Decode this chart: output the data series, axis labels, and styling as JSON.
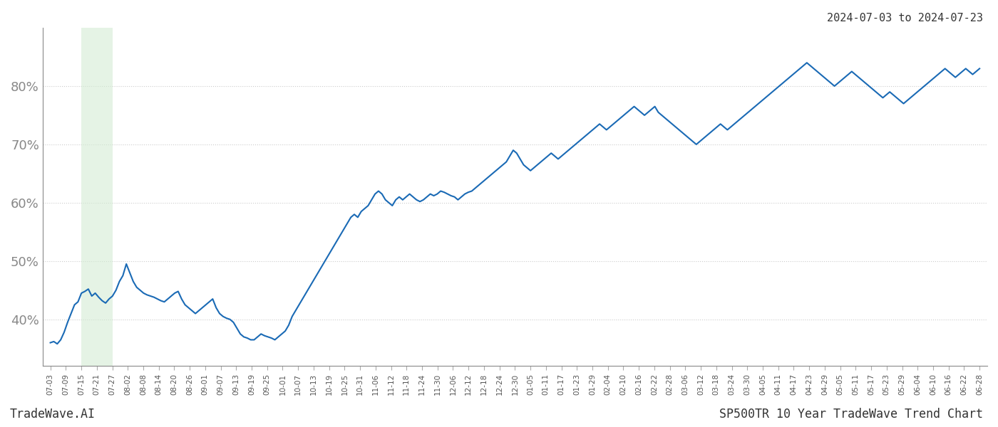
{
  "title_top_right": "2024-07-03 to 2024-07-23",
  "bottom_left": "TradeWave.AI",
  "bottom_right": "SP500TR 10 Year TradeWave Trend Chart",
  "line_color": "#1a6ab5",
  "line_width": 1.5,
  "shade_color": "#d4ecd4",
  "shade_alpha": 0.6,
  "shade_xstart": 2,
  "shade_xend": 4,
  "background_color": "#ffffff",
  "grid_color": "#cccccc",
  "grid_style": ":",
  "yticks": [
    40,
    50,
    60,
    70,
    80
  ],
  "ylim": [
    32,
    90
  ],
  "ylabel_color": "#888888",
  "x_labels": [
    "07-03",
    "07-09",
    "07-15",
    "07-21",
    "07-27",
    "08-02",
    "08-08",
    "08-14",
    "08-20",
    "08-26",
    "09-01",
    "09-07",
    "09-13",
    "09-19",
    "09-25",
    "10-01",
    "10-07",
    "10-13",
    "10-19",
    "10-25",
    "10-31",
    "11-06",
    "11-12",
    "11-18",
    "11-24",
    "11-30",
    "12-06",
    "12-12",
    "12-18",
    "12-24",
    "12-30",
    "01-05",
    "01-11",
    "01-17",
    "01-23",
    "01-29",
    "02-04",
    "02-10",
    "02-16",
    "02-22",
    "02-28",
    "03-06",
    "03-12",
    "03-18",
    "03-24",
    "03-30",
    "04-05",
    "04-11",
    "04-17",
    "04-23",
    "04-29",
    "05-05",
    "05-11",
    "05-17",
    "05-23",
    "05-29",
    "06-04",
    "06-10",
    "06-16",
    "06-22",
    "06-28"
  ],
  "y_values": [
    36.0,
    36.2,
    35.8,
    36.5,
    37.8,
    39.5,
    41.0,
    42.5,
    43.0,
    44.5,
    44.8,
    45.2,
    44.0,
    44.5,
    43.8,
    43.2,
    42.8,
    43.5,
    44.0,
    45.0,
    46.5,
    47.5,
    49.5,
    48.0,
    46.5,
    45.5,
    45.0,
    44.5,
    44.2,
    44.0,
    43.8,
    43.5,
    43.2,
    43.0,
    43.5,
    44.0,
    44.5,
    44.8,
    43.5,
    42.5,
    42.0,
    41.5,
    41.0,
    41.5,
    42.0,
    42.5,
    43.0,
    43.5,
    42.0,
    41.0,
    40.5,
    40.2,
    40.0,
    39.5,
    38.5,
    37.5,
    37.0,
    36.8,
    36.5,
    36.5,
    37.0,
    37.5,
    37.2,
    37.0,
    36.8,
    36.5,
    37.0,
    37.5,
    38.0,
    39.0,
    40.5,
    41.5,
    42.5,
    43.5,
    44.5,
    45.5,
    46.5,
    47.5,
    48.5,
    49.5,
    50.5,
    51.5,
    52.5,
    53.5,
    54.5,
    55.5,
    56.5,
    57.5,
    58.0,
    57.5,
    58.5,
    59.0,
    59.5,
    60.5,
    61.5,
    62.0,
    61.5,
    60.5,
    60.0,
    59.5,
    60.5,
    61.0,
    60.5,
    61.0,
    61.5,
    61.0,
    60.5,
    60.2,
    60.5,
    61.0,
    61.5,
    61.2,
    61.5,
    62.0,
    61.8,
    61.5,
    61.2,
    61.0,
    60.5,
    61.0,
    61.5,
    61.8,
    62.0,
    62.5,
    63.0,
    63.5,
    64.0,
    64.5,
    65.0,
    65.5,
    66.0,
    66.5,
    67.0,
    68.0,
    69.0,
    68.5,
    67.5,
    66.5,
    66.0,
    65.5,
    66.0,
    66.5,
    67.0,
    67.5,
    68.0,
    68.5,
    68.0,
    67.5,
    68.0,
    68.5,
    69.0,
    69.5,
    70.0,
    70.5,
    71.0,
    71.5,
    72.0,
    72.5,
    73.0,
    73.5,
    73.0,
    72.5,
    73.0,
    73.5,
    74.0,
    74.5,
    75.0,
    75.5,
    76.0,
    76.5,
    76.0,
    75.5,
    75.0,
    75.5,
    76.0,
    76.5,
    75.5,
    75.0,
    74.5,
    74.0,
    73.5,
    73.0,
    72.5,
    72.0,
    71.5,
    71.0,
    70.5,
    70.0,
    70.5,
    71.0,
    71.5,
    72.0,
    72.5,
    73.0,
    73.5,
    73.0,
    72.5,
    73.0,
    73.5,
    74.0,
    74.5,
    75.0,
    75.5,
    76.0,
    76.5,
    77.0,
    77.5,
    78.0,
    78.5,
    79.0,
    79.5,
    80.0,
    80.5,
    81.0,
    81.5,
    82.0,
    82.5,
    83.0,
    83.5,
    84.0,
    83.5,
    83.0,
    82.5,
    82.0,
    81.5,
    81.0,
    80.5,
    80.0,
    80.5,
    81.0,
    81.5,
    82.0,
    82.5,
    82.0,
    81.5,
    81.0,
    80.5,
    80.0,
    79.5,
    79.0,
    78.5,
    78.0,
    78.5,
    79.0,
    78.5,
    78.0,
    77.5,
    77.0,
    77.5,
    78.0,
    78.5,
    79.0,
    79.5,
    80.0,
    80.5,
    81.0,
    81.5,
    82.0,
    82.5,
    83.0,
    82.5,
    82.0,
    81.5,
    82.0,
    82.5,
    83.0,
    82.5,
    82.0,
    82.5,
    83.0
  ]
}
